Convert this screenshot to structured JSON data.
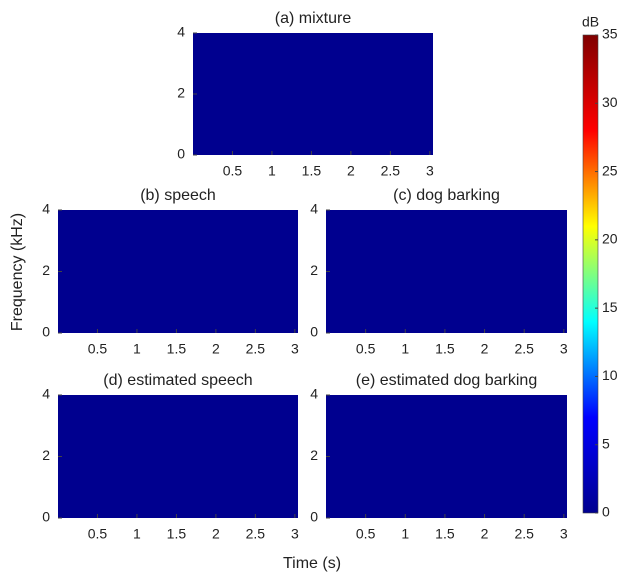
{
  "figure": {
    "xlabel": "Time (s)",
    "ylabel": "Frequency (kHz)"
  },
  "chart_data": [
    {
      "type": "spectrogram",
      "title": "(a) mixture",
      "xlim": [
        0,
        3.04
      ],
      "ylim": [
        0,
        4
      ],
      "xticks": [
        0.5,
        1,
        1.5,
        2,
        2.5,
        3
      ],
      "yticks": [
        0,
        2,
        4
      ]
    },
    {
      "type": "spectrogram",
      "title": "(b) speech",
      "xlim": [
        0,
        3.04
      ],
      "ylim": [
        0,
        4
      ],
      "xticks": [
        0.5,
        1,
        1.5,
        2,
        2.5,
        3
      ],
      "yticks": [
        0,
        2,
        4
      ]
    },
    {
      "type": "spectrogram",
      "title": "(c) dog barking",
      "xlim": [
        0,
        3.04
      ],
      "ylim": [
        0,
        4
      ],
      "xticks": [
        0.5,
        1,
        1.5,
        2,
        2.5,
        3
      ],
      "yticks": [
        0,
        2,
        4
      ]
    },
    {
      "type": "spectrogram",
      "title": "(d) estimated speech",
      "xlim": [
        0,
        3.04
      ],
      "ylim": [
        0,
        4
      ],
      "xticks": [
        0.5,
        1,
        1.5,
        2,
        2.5,
        3
      ],
      "yticks": [
        0,
        2,
        4
      ]
    },
    {
      "type": "spectrogram",
      "title": "(e) estimated dog barking",
      "xlim": [
        0,
        3.04
      ],
      "ylim": [
        0,
        4
      ],
      "xticks": [
        0.5,
        1,
        1.5,
        2,
        2.5,
        3
      ],
      "yticks": [
        0,
        2,
        4
      ]
    },
    {
      "type": "colorbar",
      "title": "dB",
      "ylim": [
        0,
        35
      ],
      "yticks": [
        0,
        5,
        10,
        15,
        20,
        25,
        30,
        35
      ],
      "colormap": [
        "#00008f",
        "#0000ff",
        "#00ffff",
        "#ffff00",
        "#ff0000",
        "#800000"
      ]
    }
  ]
}
